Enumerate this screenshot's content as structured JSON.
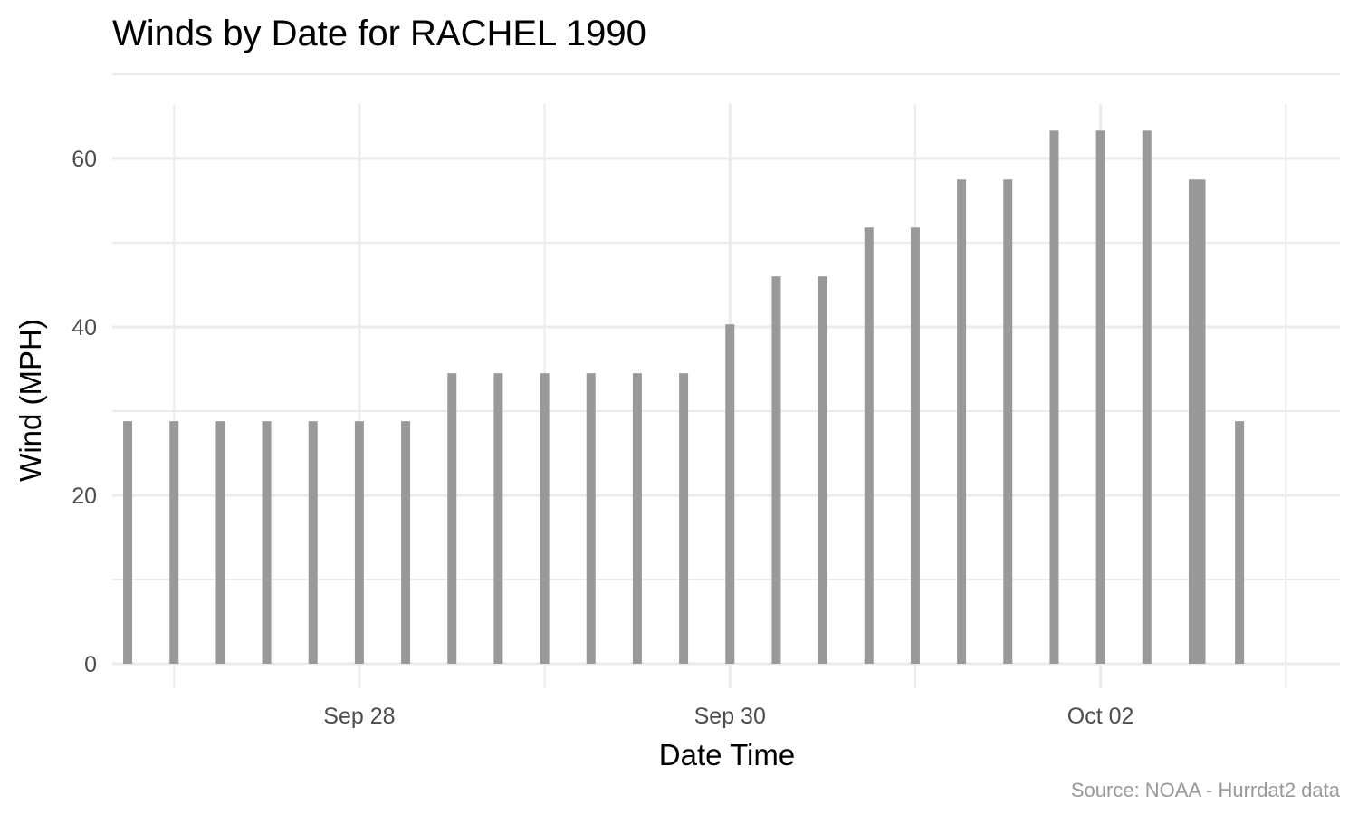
{
  "chart_data": {
    "type": "bar",
    "title": "Winds by Date for RACHEL 1990",
    "xlabel": "Date Time",
    "ylabel": "Wind (MPH)",
    "caption": "Source: NOAA - Hurrdat2 data",
    "x_ticks": [
      {
        "label": "Sep 28",
        "date": "1990-09-28T00:00"
      },
      {
        "label": "Sep 30",
        "date": "1990-09-30T00:00"
      },
      {
        "label": "Oct 02",
        "date": "1990-10-02T00:00"
      }
    ],
    "y_ticks": [
      0,
      20,
      40,
      60
    ],
    "ylim": [
      0,
      66
    ],
    "xlim": [
      "1990-09-26T16:00",
      "1990-10-03T07:00"
    ],
    "grid": true,
    "bar_color": "#999999",
    "series": [
      {
        "points": [
          {
            "x": "1990-09-26T18:00",
            "y": 28.8
          },
          {
            "x": "1990-09-27T00:00",
            "y": 28.8
          },
          {
            "x": "1990-09-27T06:00",
            "y": 28.8
          },
          {
            "x": "1990-09-27T12:00",
            "y": 28.8
          },
          {
            "x": "1990-09-27T18:00",
            "y": 28.8
          },
          {
            "x": "1990-09-28T00:00",
            "y": 28.8
          },
          {
            "x": "1990-09-28T06:00",
            "y": 28.8
          },
          {
            "x": "1990-09-28T12:00",
            "y": 34.5
          },
          {
            "x": "1990-09-28T18:00",
            "y": 34.5
          },
          {
            "x": "1990-09-29T00:00",
            "y": 34.5
          },
          {
            "x": "1990-09-29T06:00",
            "y": 34.5
          },
          {
            "x": "1990-09-29T12:00",
            "y": 34.5
          },
          {
            "x": "1990-09-29T18:00",
            "y": 34.5
          },
          {
            "x": "1990-09-30T00:00",
            "y": 40.3
          },
          {
            "x": "1990-09-30T06:00",
            "y": 46.0
          },
          {
            "x": "1990-09-30T12:00",
            "y": 46.0
          },
          {
            "x": "1990-09-30T18:00",
            "y": 51.8
          },
          {
            "x": "1990-10-01T00:00",
            "y": 51.8
          },
          {
            "x": "1990-10-01T06:00",
            "y": 57.5
          },
          {
            "x": "1990-10-01T12:00",
            "y": 57.5
          },
          {
            "x": "1990-10-01T18:00",
            "y": 63.3
          },
          {
            "x": "1990-10-02T00:00",
            "y": 63.3
          },
          {
            "x": "1990-10-02T06:00",
            "y": 63.3
          },
          {
            "x": "1990-10-02T12:00",
            "y": 57.5
          },
          {
            "x": "1990-10-02T13:00",
            "y": 57.5
          },
          {
            "x": "1990-10-02T18:00",
            "y": 28.8
          }
        ]
      }
    ]
  }
}
